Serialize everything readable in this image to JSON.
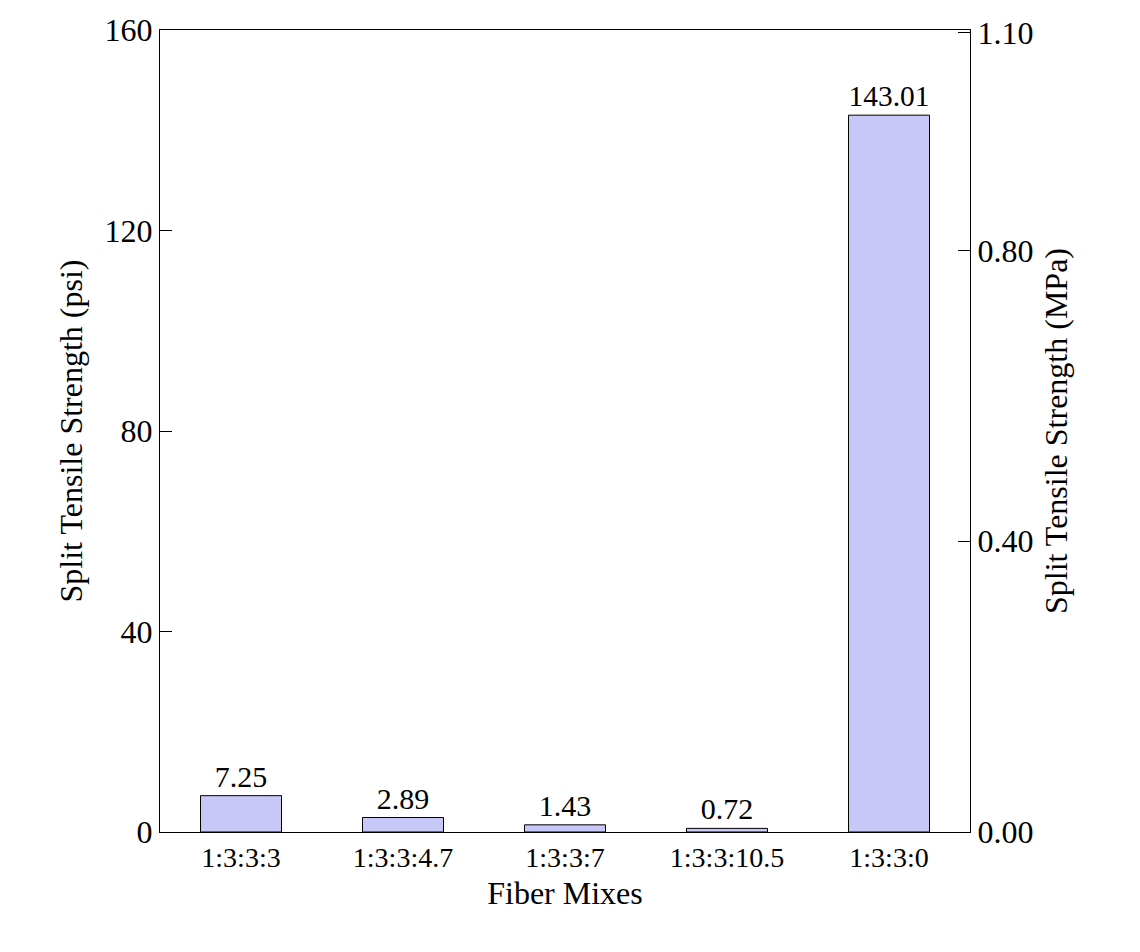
{
  "chart_data": {
    "type": "bar",
    "x_label": "Fiber Mixes",
    "y_label": "Split Tensile Strength (psi)",
    "y2_label": "Split Tensile Strength (MPa)",
    "categories": [
      "1:3:3:3",
      "1:3:3:4.7",
      "1:3:3:7",
      "1:3:3:10.5",
      "1:3:3:0"
    ],
    "values": [
      7.25,
      2.89,
      1.43,
      0.72,
      143.01
    ],
    "color": "#c8c8f8",
    "data_labels": true,
    "ylim": [
      0,
      160
    ],
    "yticks": [
      0,
      40,
      80,
      120,
      160
    ],
    "y2lim": [
      0,
      1.1032
    ],
    "y2ticks": [
      {
        "value": 0,
        "label": "0.00"
      },
      {
        "value": 0.4,
        "label": "0.40"
      },
      {
        "value": 0.8,
        "label": "0.80"
      },
      {
        "value": 1.1,
        "label": "1.10"
      }
    ],
    "grid": false
  }
}
